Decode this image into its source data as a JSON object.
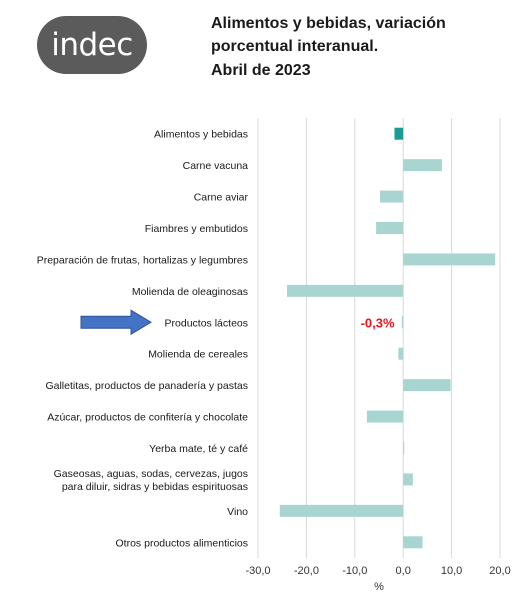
{
  "logo": {
    "text": "indec"
  },
  "title_lines": [
    "Alimentos y bebidas, variación",
    "porcentual interanual.",
    "Abril de 2023"
  ],
  "chart_data": {
    "type": "bar",
    "orientation": "horizontal",
    "categories": [
      "Alimentos y bebidas",
      "Carne vacuna",
      "Carne aviar",
      "Fiambres y embutidos",
      "Preparación de frutas, hortalizas y legumbres",
      "Molienda de oleaginosas",
      "Productos lácteos",
      "Molienda de cereales",
      "Galletitas, productos de panadería y pastas",
      "Azúcar, productos de confitería y chocolate",
      "Yerba mate, té y café",
      "Gaseosas, aguas, sodas, cervezas, jugos para diluir, sidras y bebidas espirituosas",
      "Vino",
      "Otros productos alimenticios"
    ],
    "category_label_lines": [
      [
        "Alimentos y bebidas"
      ],
      [
        "Carne vacuna"
      ],
      [
        "Carne aviar"
      ],
      [
        "Fiambres y embutidos"
      ],
      [
        "Preparación de frutas, hortalizas y legumbres"
      ],
      [
        "Molienda de oleaginosas"
      ],
      [
        "Productos lácteos"
      ],
      [
        "Molienda de cereales"
      ],
      [
        "Galletitas, productos de panadería y pastas"
      ],
      [
        "Azúcar, productos de confitería y chocolate"
      ],
      [
        "Yerba mate, té y café"
      ],
      [
        "Gaseosas, aguas, sodas, cervezas, jugos",
        "para diluir, sidras y bebidas espirituosas"
      ],
      [
        "Vino"
      ],
      [
        "Otros productos alimenticios"
      ]
    ],
    "values": [
      -1.8,
      8.0,
      -4.8,
      -5.6,
      19.0,
      -24.0,
      -0.3,
      -1.0,
      9.8,
      -7.5,
      0.1,
      2.0,
      -25.5,
      4.0
    ],
    "highlight_index": 0,
    "emphasized_category_index": 6,
    "annotation": "-0,3%",
    "xlim": [
      -30,
      20
    ],
    "xticks": [
      -30,
      -20,
      -10,
      0,
      10,
      20
    ],
    "xtick_labels": [
      "-30,0",
      "-20,0",
      "-10,0",
      "0,0",
      "10,0",
      "20,0"
    ],
    "xlabel": "%",
    "grid": "vertical",
    "colors": {
      "bar": "#a8d5d0",
      "highlight_bar": "#1a9c94",
      "grid": "#d9d9d9",
      "arrow": "#4472c4",
      "annotation": "#e8141c"
    }
  }
}
